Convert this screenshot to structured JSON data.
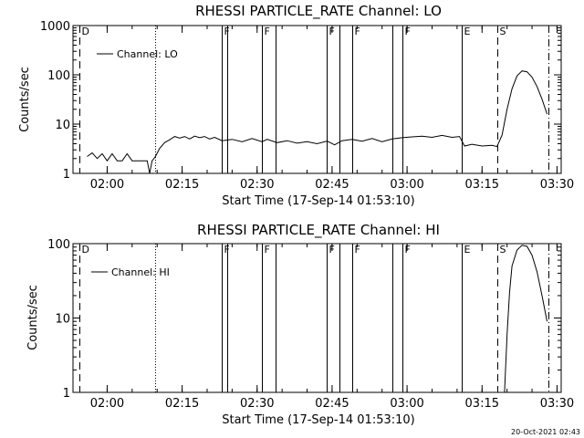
{
  "footer_date": "20-Oct-2021 02:43",
  "colors": {
    "background": "#ffffff",
    "foreground": "#000000"
  },
  "chart_data": [
    {
      "type": "line",
      "title": "RHESSI PARTICLE_RATE Channel: LO",
      "xlabel": "Start Time (17-Sep-14 01:53:10)",
      "ylabel": "Counts/sec",
      "scale": "log",
      "ylim": [
        1,
        1000
      ],
      "xlim": [
        "01:53:10",
        "03:30:50"
      ],
      "xticks": [
        "02:00",
        "02:15",
        "02:30",
        "02:45",
        "03:00",
        "03:15",
        "03:30"
      ],
      "yticks": [
        "1",
        "10",
        "100",
        "1000"
      ],
      "legend": {
        "label": "Channel: LO",
        "position": "top-left"
      },
      "markers": [
        {
          "time": "01:54:30",
          "label": "D",
          "style": "dashed"
        },
        {
          "time": "02:09:40",
          "label": "",
          "style": "dotted"
        },
        {
          "time": "02:23:00",
          "label": "F",
          "style": "solid"
        },
        {
          "time": "02:24:00",
          "label": "",
          "style": "solid"
        },
        {
          "time": "02:31:00",
          "label": "F",
          "style": "solid"
        },
        {
          "time": "02:33:40",
          "label": "",
          "style": "solid"
        },
        {
          "time": "02:44:00",
          "label": "F",
          "style": "solid"
        },
        {
          "time": "02:46:30",
          "label": "",
          "style": "solid"
        },
        {
          "time": "02:49:00",
          "label": "F",
          "style": "solid"
        },
        {
          "time": "02:57:00",
          "label": "",
          "style": "solid"
        },
        {
          "time": "02:59:00",
          "label": "F",
          "style": "solid"
        },
        {
          "time": "03:11:00",
          "label": "E",
          "style": "solid"
        },
        {
          "time": "03:18:00",
          "label": "S",
          "style": "dashed"
        },
        {
          "time": "03:28:20",
          "label": "",
          "style": "dashdot"
        }
      ],
      "series": [
        {
          "name": "Channel: LO",
          "points": [
            [
              "01:56:00",
              2.2
            ],
            [
              "01:57:00",
              2.6
            ],
            [
              "01:58:00",
              2.0
            ],
            [
              "01:59:00",
              2.5
            ],
            [
              "02:00:00",
              1.8
            ],
            [
              "02:01:00",
              2.5
            ],
            [
              "02:02:00",
              1.8
            ],
            [
              "02:03:00",
              1.8
            ],
            [
              "02:04:00",
              2.5
            ],
            [
              "02:05:00",
              1.8
            ],
            [
              "02:06:00",
              1.8
            ],
            [
              "02:07:00",
              1.8
            ],
            [
              "02:08:00",
              1.8
            ],
            [
              "02:08:30",
              1.0
            ],
            [
              "02:09:00",
              1.8
            ],
            [
              "02:09:40",
              2.2
            ],
            [
              "02:10:30",
              3.2
            ],
            [
              "02:11:30",
              4.2
            ],
            [
              "02:12:30",
              4.8
            ],
            [
              "02:13:30",
              5.6
            ],
            [
              "02:14:30",
              5.2
            ],
            [
              "02:15:30",
              5.6
            ],
            [
              "02:16:30",
              5.0
            ],
            [
              "02:17:30",
              5.7
            ],
            [
              "02:18:30",
              5.3
            ],
            [
              "02:19:30",
              5.6
            ],
            [
              "02:20:30",
              5.0
            ],
            [
              "02:21:30",
              5.4
            ],
            [
              "02:23:00",
              4.6
            ],
            [
              "02:25:00",
              4.9
            ],
            [
              "02:27:00",
              4.4
            ],
            [
              "02:29:00",
              5.1
            ],
            [
              "02:31:00",
              4.4
            ],
            [
              "02:32:00",
              4.9
            ],
            [
              "02:34:00",
              4.2
            ],
            [
              "02:36:00",
              4.6
            ],
            [
              "02:38:00",
              4.1
            ],
            [
              "02:40:00",
              4.4
            ],
            [
              "02:42:00",
              4.0
            ],
            [
              "02:44:00",
              4.5
            ],
            [
              "02:45:30",
              3.8
            ],
            [
              "02:47:00",
              4.6
            ],
            [
              "02:49:00",
              4.9
            ],
            [
              "02:51:00",
              4.5
            ],
            [
              "02:53:00",
              5.1
            ],
            [
              "02:55:00",
              4.4
            ],
            [
              "02:57:00",
              5.0
            ],
            [
              "02:59:00",
              5.3
            ],
            [
              "03:01:00",
              5.5
            ],
            [
              "03:03:00",
              5.7
            ],
            [
              "03:05:00",
              5.4
            ],
            [
              "03:07:00",
              5.9
            ],
            [
              "03:09:00",
              5.4
            ],
            [
              "03:10:30",
              5.6
            ],
            [
              "03:11:30",
              3.6
            ],
            [
              "03:13:00",
              3.9
            ],
            [
              "03:15:00",
              3.6
            ],
            [
              "03:17:00",
              3.7
            ],
            [
              "03:18:00",
              3.5
            ],
            [
              "03:19:00",
              6
            ],
            [
              "03:20:00",
              20
            ],
            [
              "03:21:00",
              52
            ],
            [
              "03:22:00",
              95
            ],
            [
              "03:23:00",
              120
            ],
            [
              "03:24:00",
              115
            ],
            [
              "03:25:00",
              90
            ],
            [
              "03:26:00",
              58
            ],
            [
              "03:27:00",
              32
            ],
            [
              "03:28:00",
              16
            ]
          ]
        }
      ]
    },
    {
      "type": "line",
      "title": "RHESSI PARTICLE_RATE Channel: HI",
      "xlabel": "Start Time (17-Sep-14 01:53:10)",
      "ylabel": "Counts/sec",
      "scale": "log",
      "ylim": [
        1,
        100
      ],
      "xlim": [
        "01:53:10",
        "03:30:50"
      ],
      "xticks": [
        "02:00",
        "02:15",
        "02:30",
        "02:45",
        "03:00",
        "03:15",
        "03:30"
      ],
      "yticks": [
        "1",
        "10",
        "100"
      ],
      "legend": {
        "label": "Channel: HI",
        "position": "top-left"
      },
      "markers": [
        {
          "time": "01:54:30",
          "label": "D",
          "style": "dashed"
        },
        {
          "time": "02:09:40",
          "label": "",
          "style": "dotted"
        },
        {
          "time": "02:23:00",
          "label": "F",
          "style": "solid"
        },
        {
          "time": "02:24:00",
          "label": "",
          "style": "solid"
        },
        {
          "time": "02:31:00",
          "label": "F",
          "style": "solid"
        },
        {
          "time": "02:33:40",
          "label": "",
          "style": "solid"
        },
        {
          "time": "02:44:00",
          "label": "F",
          "style": "solid"
        },
        {
          "time": "02:46:30",
          "label": "",
          "style": "solid"
        },
        {
          "time": "02:49:00",
          "label": "F",
          "style": "solid"
        },
        {
          "time": "02:57:00",
          "label": "",
          "style": "solid"
        },
        {
          "time": "02:59:00",
          "label": "F",
          "style": "solid"
        },
        {
          "time": "03:11:00",
          "label": "E",
          "style": "solid"
        },
        {
          "time": "03:18:00",
          "label": "S",
          "style": "dashed"
        },
        {
          "time": "03:28:20",
          "label": "",
          "style": "dashdot"
        }
      ],
      "series": [
        {
          "name": "Channel: HI",
          "points": [
            [
              "03:19:30",
              1.0
            ],
            [
              "03:20:00",
              6
            ],
            [
              "03:20:30",
              22
            ],
            [
              "03:21:00",
              50
            ],
            [
              "03:22:00",
              82
            ],
            [
              "03:23:00",
              95
            ],
            [
              "03:24:00",
              92
            ],
            [
              "03:25:00",
              70
            ],
            [
              "03:26:00",
              42
            ],
            [
              "03:27:00",
              20
            ],
            [
              "03:28:00",
              9
            ]
          ]
        }
      ]
    }
  ]
}
